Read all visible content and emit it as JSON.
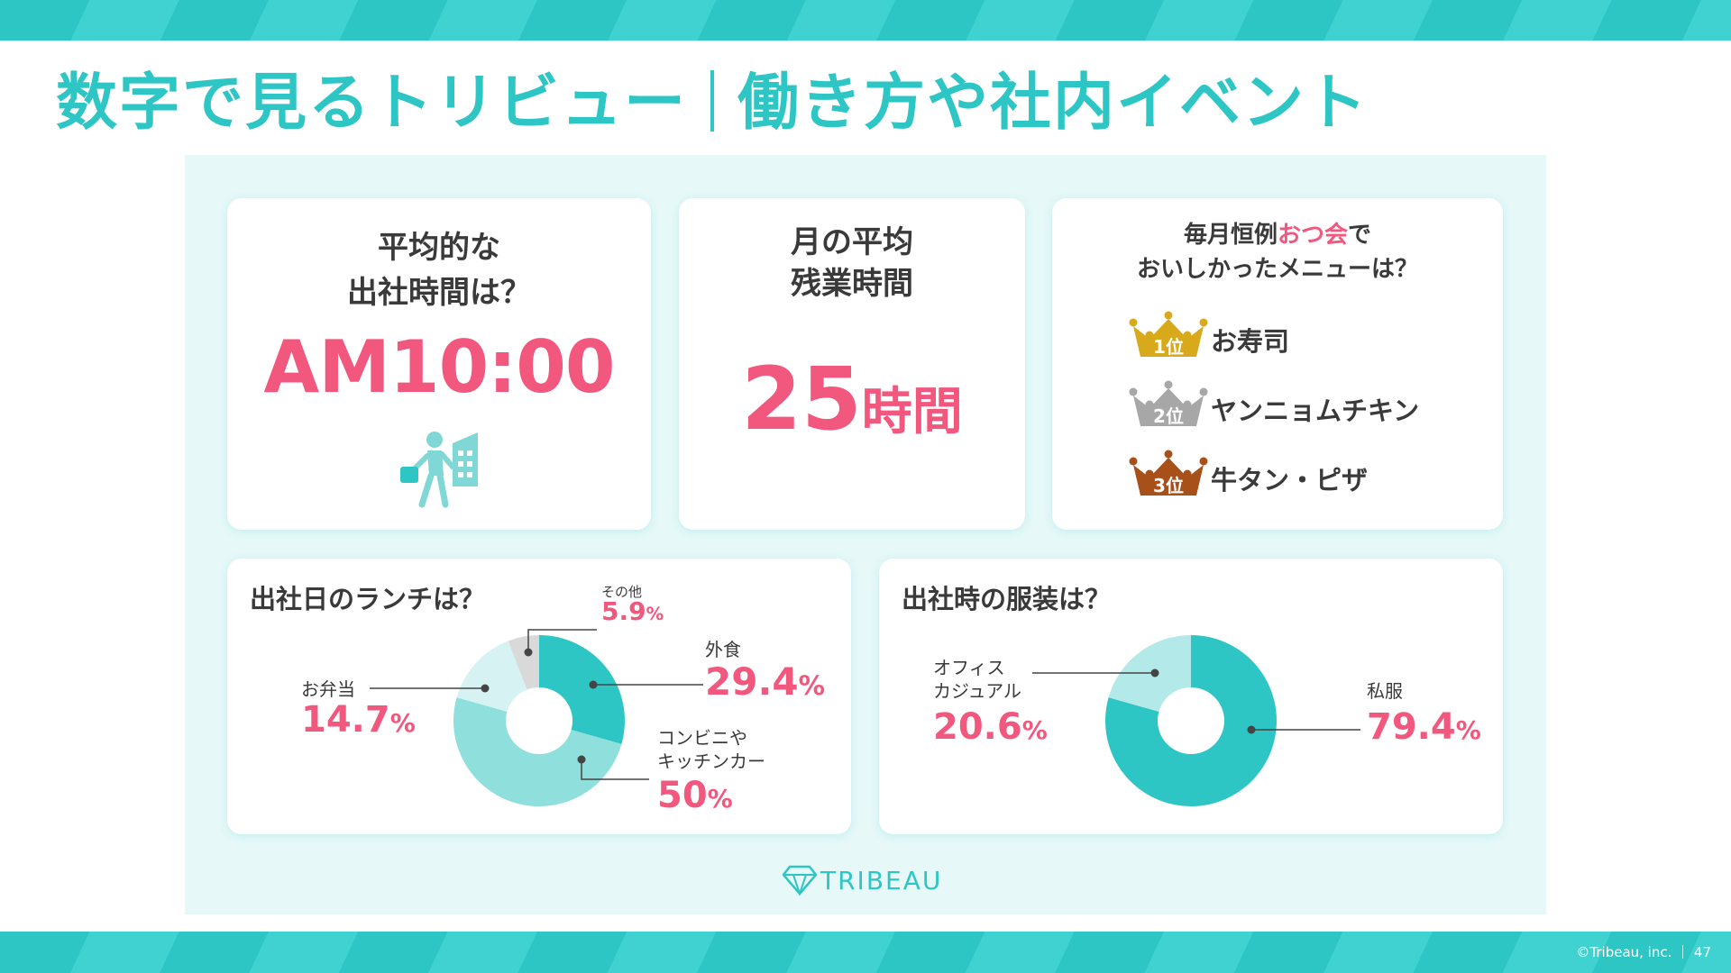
{
  "header": {
    "title_left": "数字で見るトリビュー",
    "title_right": "働き方や社内イベント"
  },
  "cards": {
    "arrival": {
      "question_line1": "平均的な",
      "question_line2": "出社時間は？",
      "value": "AM10:00"
    },
    "overtime": {
      "question_line1": "月の平均",
      "question_line2": "残業時間",
      "value_number": "25",
      "value_unit": "時間"
    },
    "snacks": {
      "question_line1_a": "毎月恒例",
      "question_line1_highlight": "おつ会",
      "question_line1_b": "で",
      "question_line2": "おいしかったメニューは？",
      "ranking": [
        {
          "badge": "1位",
          "name": "お寿司",
          "color": "#d9a91c"
        },
        {
          "badge": "2位",
          "name": "ヤンニョムチキン",
          "color": "#a7a7a7"
        },
        {
          "badge": "3位",
          "name": "牛タン・ピザ",
          "color": "#a8501a"
        }
      ]
    }
  },
  "chart_data": [
    {
      "type": "pie",
      "title": "出社日のランチは？",
      "categories": [
        "外食",
        "コンビニやキッチンカー",
        "お弁当",
        "その他"
      ],
      "values": [
        29.4,
        50,
        14.7,
        5.9
      ],
      "colors": [
        "#2ec6c4",
        "#8fdfdd",
        "#d6f2f2",
        "#d9d9d9"
      ],
      "labels": {
        "eat_out": {
          "name": "外食",
          "value": "29.4",
          "unit": "%"
        },
        "convenience": {
          "name_line1": "コンビニや",
          "name_line2": "キッチンカー",
          "value": "50",
          "unit": "%"
        },
        "bento": {
          "name": "お弁当",
          "value": "14.7",
          "unit": "%"
        },
        "other": {
          "name": "その他",
          "value": "5.9",
          "unit": "%"
        }
      }
    },
    {
      "type": "pie",
      "title": "出社時の服装は？",
      "categories": [
        "私服",
        "オフィスカジュアル"
      ],
      "values": [
        79.4,
        20.6
      ],
      "colors": [
        "#2ec6c4",
        "#b3e9e8"
      ],
      "labels": {
        "casual": {
          "name": "私服",
          "value": "79.4",
          "unit": "%"
        },
        "office": {
          "name_line1": "オフィス",
          "name_line2": "カジュアル",
          "value": "20.6",
          "unit": "%"
        }
      }
    }
  ],
  "footer": {
    "brand": "TRIBEAU",
    "copyright": "©Tribeau, inc. ｜ 47"
  }
}
